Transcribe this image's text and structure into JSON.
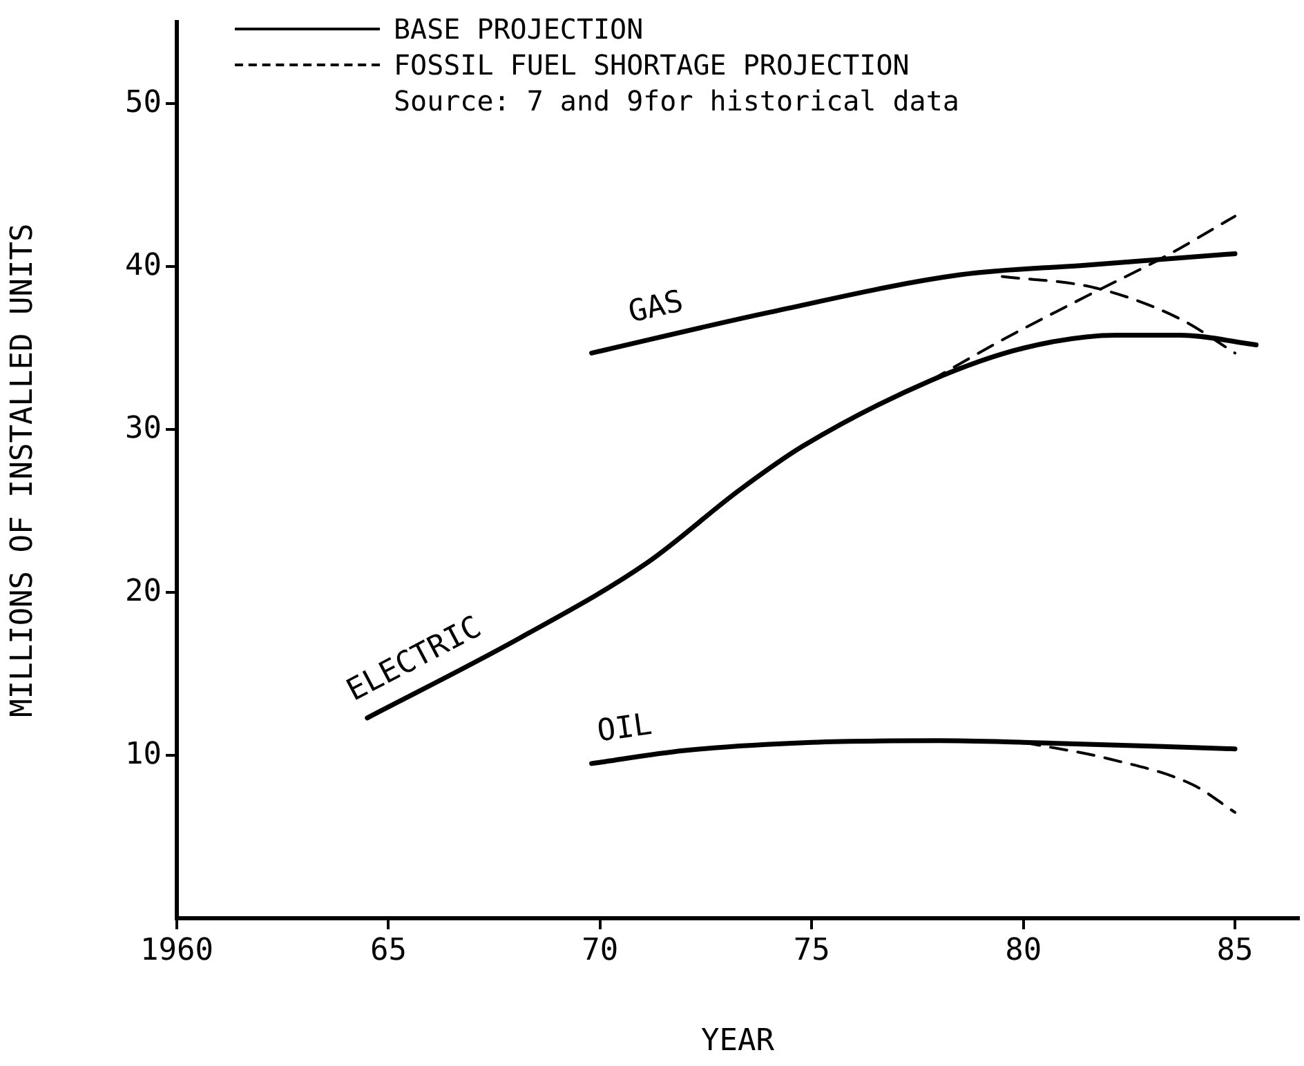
{
  "chart_data": {
    "type": "line",
    "xlabel": "YEAR",
    "ylabel": "MILLIONS OF INSTALLED UNITS",
    "annotations": [
      "BASE PROJECTION",
      "FOSSIL FUEL SHORTAGE PROJECTION",
      "Source: 7 and 9for historical data"
    ],
    "xlim": [
      1960,
      1986.5
    ],
    "ylim": [
      0,
      55
    ],
    "xticks": [
      1960,
      {
        "value": 1965,
        "label": "65"
      },
      {
        "value": 1970,
        "label": "70"
      },
      {
        "value": 1975,
        "label": "75"
      },
      {
        "value": 1980,
        "label": "80"
      },
      {
        "value": 1985,
        "label": "85"
      }
    ],
    "yticks": [
      10,
      20,
      30,
      40,
      50
    ],
    "grid": false,
    "marker": "none",
    "series": [
      {
        "name": "GAS",
        "color": "#000000",
        "line_style": "solid",
        "x": [
          1969.8,
          1974,
          1978.5,
          1981.5,
          1985
        ],
        "values": [
          34.7,
          37.2,
          39.5,
          40.1,
          40.8
        ]
      },
      {
        "color": "#000000",
        "line_style": "dashed",
        "x": [
          1979.5,
          1981.7,
          1983.7,
          1985
        ],
        "values": [
          39.4,
          38.7,
          36.8,
          34.7
        ]
      },
      {
        "name": "ELECTRIC",
        "color": "#000000",
        "line_style": "solid",
        "x": [
          1964.5,
          1968.1,
          1971.1,
          1973.3,
          1974.8,
          1977.8,
          1980,
          1982.2,
          1983.7,
          1985.5
        ],
        "values": [
          12.3,
          17.2,
          21.8,
          26.3,
          29,
          33,
          35,
          35.8,
          35.8,
          35.2
        ]
      },
      {
        "color": "#000000",
        "line_style": "dashed",
        "x": [
          1977.8,
          1979.5,
          1981.5,
          1983.4,
          1985
        ],
        "values": [
          33,
          35.5,
          38.2,
          40.7,
          43.1
        ]
      },
      {
        "name": "OIL",
        "color": "#000000",
        "line_style": "solid",
        "x": [
          1969.8,
          1972,
          1975,
          1978,
          1980,
          1985
        ],
        "values": [
          9.5,
          10.3,
          10.8,
          10.9,
          10.8,
          10.4
        ]
      },
      {
        "color": "#000000",
        "line_style": "dashed",
        "x": [
          1980,
          1982,
          1984,
          1985
        ],
        "values": [
          10.8,
          9.8,
          8.2,
          6.5
        ]
      }
    ]
  }
}
